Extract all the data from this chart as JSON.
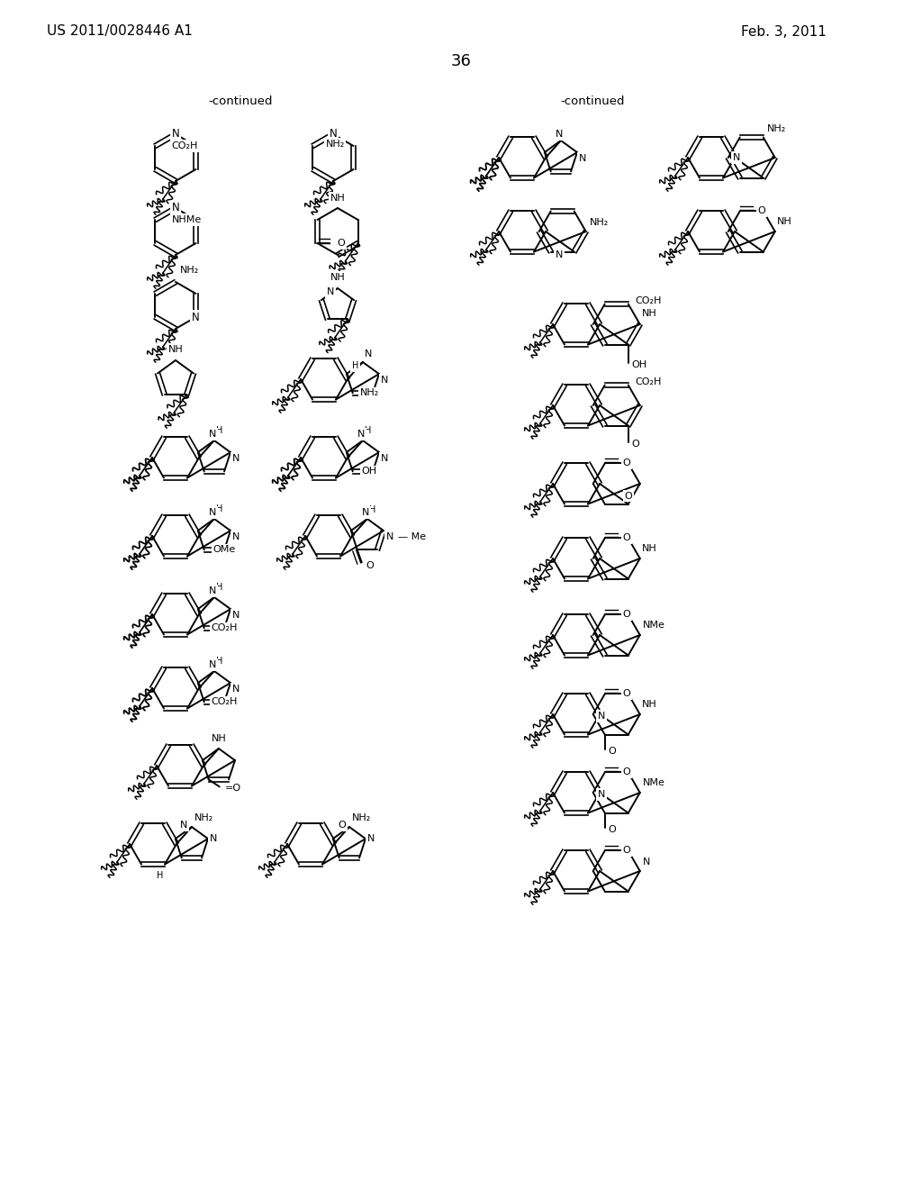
{
  "patent_number": "US 2011/0028446 A1",
  "date": "Feb. 3, 2011",
  "page_number": "36",
  "continued": "-continued",
  "background_color": "#ffffff",
  "line_color": "#000000"
}
